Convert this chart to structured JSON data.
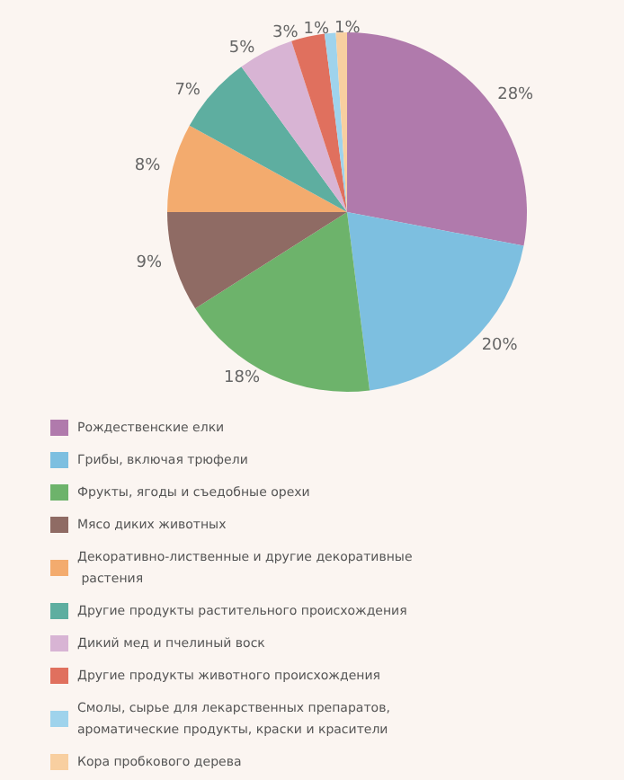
{
  "chart_data": {
    "type": "pie",
    "categories": [
      "Рождественские елки",
      "Грибы, включая трюфели",
      "Фрукты, ягоды и съедобные орехи",
      "Мясо диких животных",
      "Декоративно-лиственные и другие декоративные растения",
      "Другие продукты растительного происхождения",
      "Дикий мед и пчелиный воск",
      "Другие продукты животного происхождения",
      "Смолы, сырье для лекарственных препаратов, ароматические продукты, краски и красители",
      "Кора пробкового дерева"
    ],
    "values": [
      28,
      20,
      18,
      9,
      8,
      7,
      5,
      3,
      1,
      1
    ],
    "colors": [
      "#b07aac",
      "#7dbfe0",
      "#6db36b",
      "#8f6b64",
      "#f3ab6e",
      "#5eaea0",
      "#d8b4d4",
      "#e0705e",
      "#9fd3ec",
      "#f8cfa0"
    ],
    "value_labels": [
      "28%",
      "20%",
      "18%",
      "9%",
      "8%",
      "7%",
      "5%",
      "3%",
      "1%",
      "1%"
    ],
    "legend": "bottom"
  }
}
